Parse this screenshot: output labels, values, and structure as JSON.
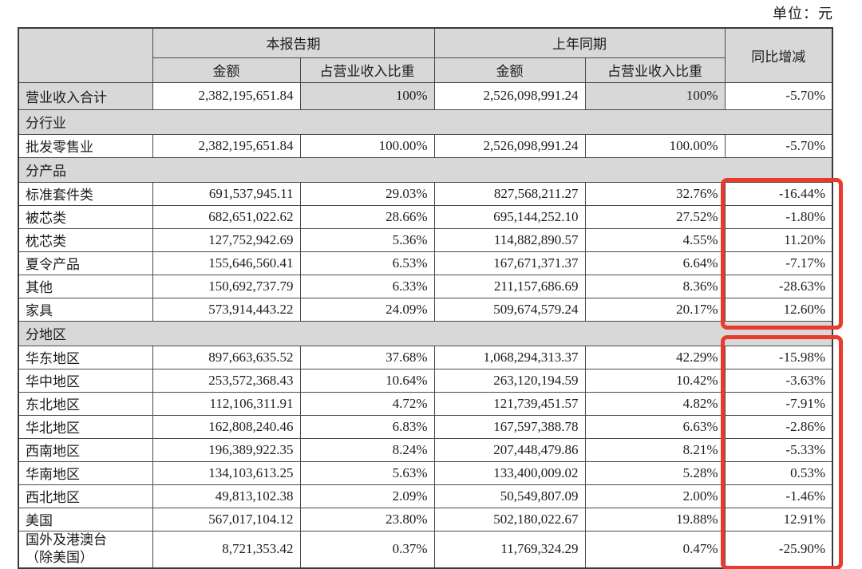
{
  "page": {
    "unit_label": "单位：元"
  },
  "table": {
    "header": {
      "current_period": "本报告期",
      "prior_period": "上年同期",
      "yoy": "同比增减",
      "amount": "金额",
      "pct_of_revenue": "占营业收入比重"
    },
    "rows": [
      {
        "type": "total",
        "label": "营业收入合计",
        "cur_amount": "2,382,195,651.84",
        "cur_pct": "100%",
        "prior_amount": "2,526,098,991.24",
        "prior_pct": "100%",
        "yoy": "-5.70%"
      },
      {
        "type": "section",
        "label": "分行业"
      },
      {
        "type": "data",
        "label": "批发零售业",
        "cur_amount": "2,382,195,651.84",
        "cur_pct": "100.00%",
        "prior_amount": "2,526,098,991.24",
        "prior_pct": "100.00%",
        "yoy": "-5.70%"
      },
      {
        "type": "section",
        "label": "分产品"
      },
      {
        "type": "data",
        "label": "标准套件类",
        "cur_amount": "691,537,945.11",
        "cur_pct": "29.03%",
        "prior_amount": "827,568,211.27",
        "prior_pct": "32.76%",
        "yoy": "-16.44%"
      },
      {
        "type": "data",
        "label": "被芯类",
        "cur_amount": "682,651,022.62",
        "cur_pct": "28.66%",
        "prior_amount": "695,144,252.10",
        "prior_pct": "27.52%",
        "yoy": "-1.80%"
      },
      {
        "type": "data",
        "label": "枕芯类",
        "cur_amount": "127,752,942.69",
        "cur_pct": "5.36%",
        "prior_amount": "114,882,890.57",
        "prior_pct": "4.55%",
        "yoy": "11.20%"
      },
      {
        "type": "data",
        "label": "夏令产品",
        "cur_amount": "155,646,560.41",
        "cur_pct": "6.53%",
        "prior_amount": "167,671,371.37",
        "prior_pct": "6.64%",
        "yoy": "-7.17%"
      },
      {
        "type": "data",
        "label": "其他",
        "cur_amount": "150,692,737.79",
        "cur_pct": "6.33%",
        "prior_amount": "211,157,686.69",
        "prior_pct": "8.36%",
        "yoy": "-28.63%"
      },
      {
        "type": "data",
        "label": "家具",
        "cur_amount": "573,914,443.22",
        "cur_pct": "24.09%",
        "prior_amount": "509,674,579.24",
        "prior_pct": "20.17%",
        "yoy": "12.60%"
      },
      {
        "type": "section",
        "label": "分地区"
      },
      {
        "type": "data",
        "label": "华东地区",
        "cur_amount": "897,663,635.52",
        "cur_pct": "37.68%",
        "prior_amount": "1,068,294,313.37",
        "prior_pct": "42.29%",
        "yoy": "-15.98%"
      },
      {
        "type": "data",
        "label": "华中地区",
        "cur_amount": "253,572,368.43",
        "cur_pct": "10.64%",
        "prior_amount": "263,120,194.59",
        "prior_pct": "10.42%",
        "yoy": "-3.63%"
      },
      {
        "type": "data",
        "label": "东北地区",
        "cur_amount": "112,106,311.91",
        "cur_pct": "4.72%",
        "prior_amount": "121,739,451.57",
        "prior_pct": "4.82%",
        "yoy": "-7.91%"
      },
      {
        "type": "data",
        "label": "华北地区",
        "cur_amount": "162,808,240.46",
        "cur_pct": "6.83%",
        "prior_amount": "167,597,388.78",
        "prior_pct": "6.63%",
        "yoy": "-2.86%"
      },
      {
        "type": "data",
        "label": "西南地区",
        "cur_amount": "196,389,922.35",
        "cur_pct": "8.24%",
        "prior_amount": "207,448,479.86",
        "prior_pct": "8.21%",
        "yoy": "-5.33%"
      },
      {
        "type": "data",
        "label": "华南地区",
        "cur_amount": "134,103,613.25",
        "cur_pct": "5.63%",
        "prior_amount": "133,400,009.02",
        "prior_pct": "5.28%",
        "yoy": "0.53%"
      },
      {
        "type": "data",
        "label": "西北地区",
        "cur_amount": "49,813,102.38",
        "cur_pct": "2.09%",
        "prior_amount": "50,549,807.09",
        "prior_pct": "2.00%",
        "yoy": "-1.46%"
      },
      {
        "type": "data",
        "label": "美国",
        "cur_amount": "567,017,104.12",
        "cur_pct": "23.80%",
        "prior_amount": "502,180,022.67",
        "prior_pct": "19.88%",
        "yoy": "12.91%"
      },
      {
        "type": "data",
        "label": "国外及港澳台",
        "label_line2": "（除美国）",
        "cur_amount": "8,721,353.42",
        "cur_pct": "0.37%",
        "prior_amount": "11,769,324.29",
        "prior_pct": "0.47%",
        "yoy": "-25.90%"
      }
    ]
  },
  "annotations": {
    "highlight_color": "#ea3a2c",
    "boxes": [
      {
        "name": "product-yoy-highlight",
        "column": "同比增减",
        "rows": "标准套件类–家具"
      },
      {
        "name": "region-yoy-highlight",
        "column": "同比增减",
        "rows": "华东地区–国外及港澳台（除美国）"
      }
    ]
  },
  "colors": {
    "cell_shade": "#d8d8d8",
    "grid_border": "#4a4a4a",
    "text": "#1c1c1c",
    "highlight_red": "#ea3a2c"
  }
}
